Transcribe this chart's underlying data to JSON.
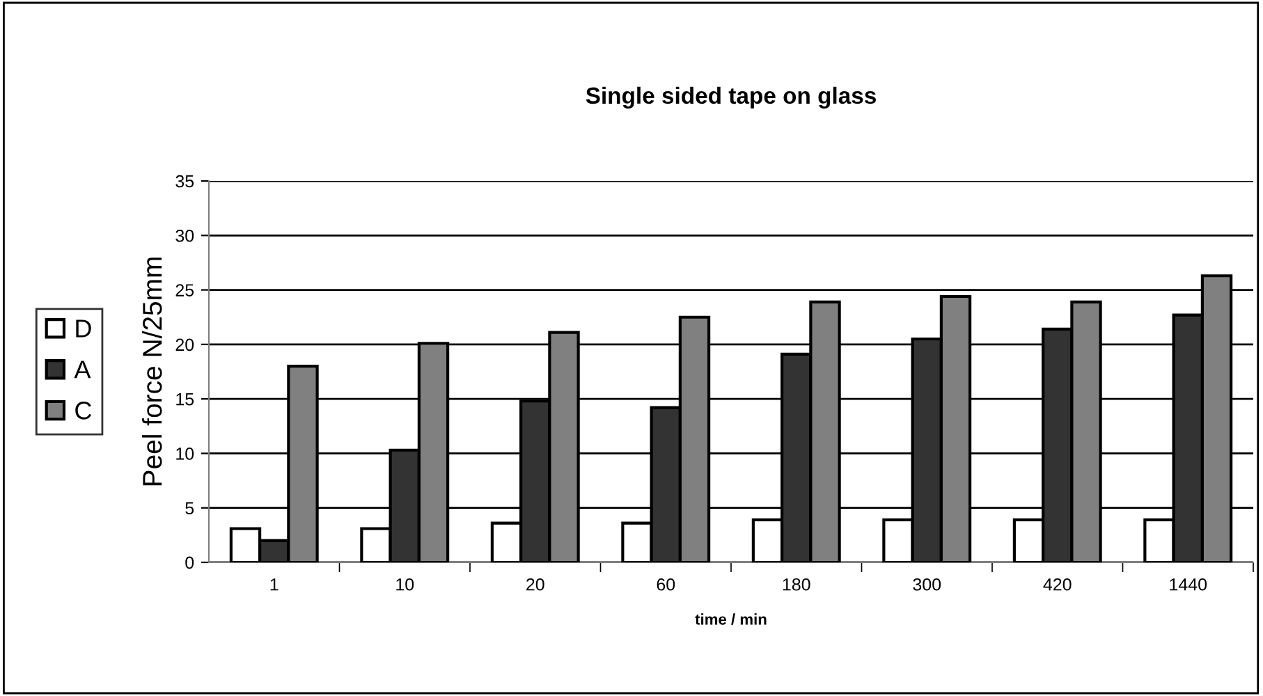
{
  "chart_data": {
    "type": "bar",
    "title": "Single sided tape on glass",
    "xlabel": "time / min",
    "ylabel": "Peel force N/25mm",
    "categories": [
      "1",
      "10",
      "20",
      "60",
      "180",
      "300",
      "420",
      "1440"
    ],
    "series": [
      {
        "name": "D",
        "color": "#ffffff",
        "values": [
          3.1,
          3.1,
          3.6,
          3.6,
          3.9,
          3.9,
          3.9,
          3.9
        ]
      },
      {
        "name": "A",
        "color": "#333333",
        "values": [
          2.0,
          10.3,
          14.8,
          14.2,
          19.1,
          20.5,
          21.4,
          22.7
        ]
      },
      {
        "name": "C",
        "color": "#808080",
        "values": [
          18.0,
          20.1,
          21.1,
          22.5,
          23.9,
          24.4,
          23.9,
          26.3
        ]
      }
    ],
    "ylim": [
      0,
      35
    ],
    "yticks": [
      0,
      5,
      10,
      15,
      20,
      25,
      30,
      35
    ],
    "grid": "y",
    "legend": "left"
  }
}
